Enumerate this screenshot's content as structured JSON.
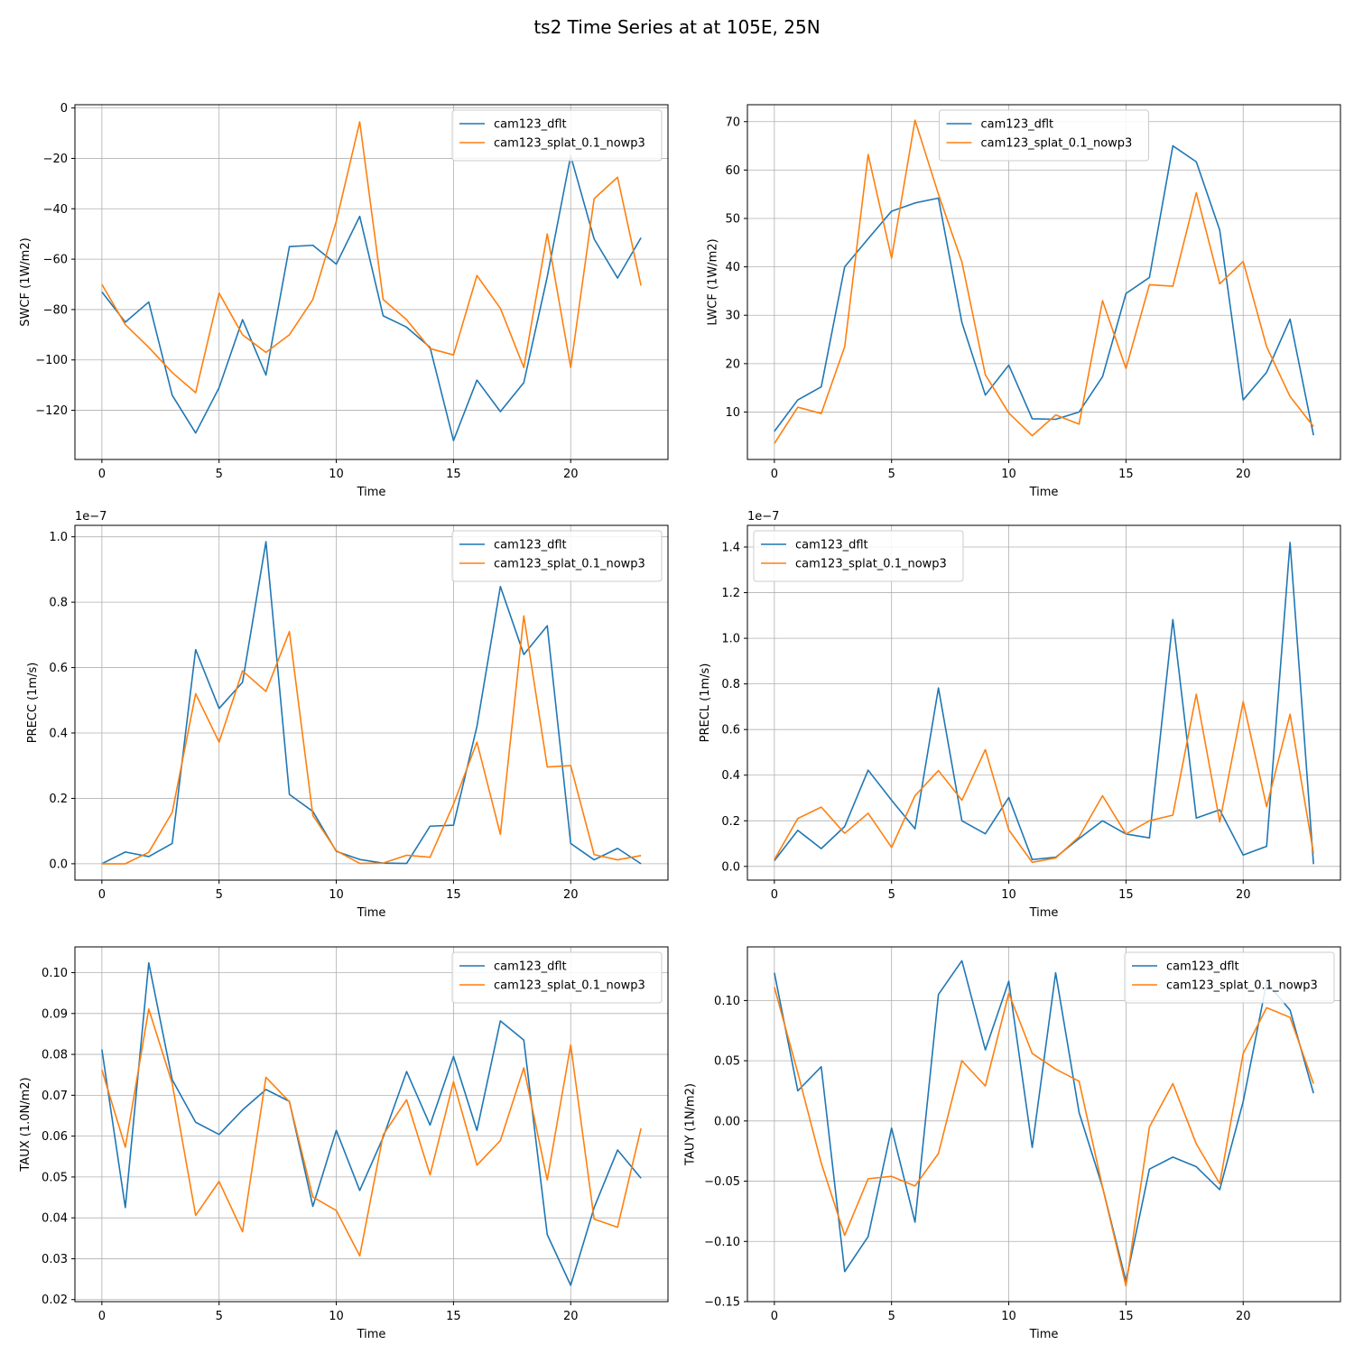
{
  "figure": {
    "title": "ts2 Time Series at at 105E, 25N",
    "colors": {
      "cam123_dflt": "#1f77b4",
      "cam123_splat_0.1_nowp3": "#ff7f0e"
    }
  },
  "chart_data": [
    {
      "type": "line",
      "title": "",
      "xlabel": "Time",
      "ylabel": "SWCF (1W/m2)",
      "x": [
        0,
        1,
        2,
        3,
        4,
        5,
        6,
        7,
        8,
        9,
        10,
        11,
        12,
        13,
        14,
        15,
        16,
        17,
        18,
        19,
        20,
        21,
        22,
        23
      ],
      "xlim": [
        -1.15,
        24.15
      ],
      "ylim": [
        -139.5,
        1.3
      ],
      "xticks": [
        0,
        5,
        10,
        15,
        20
      ],
      "xtick_labels": [
        "0",
        "5",
        "10",
        "15",
        "20"
      ],
      "yticks": [
        -120,
        -100,
        -80,
        -60,
        -40,
        -20,
        0
      ],
      "ytick_labels": [
        "−120",
        "−100",
        "−80",
        "−60",
        "−40",
        "−20",
        "0"
      ],
      "offset_text": "",
      "legend_position": "upper right",
      "series": [
        {
          "name": "cam123_dflt",
          "color": "#1f77b4",
          "values": [
            -73,
            -85,
            -77,
            -114,
            -129,
            -111,
            -84,
            -106,
            -55,
            -54.5,
            -62,
            -43,
            -82.5,
            -87,
            -95,
            -132,
            -108,
            -120.5,
            -109,
            -67,
            -19,
            -52,
            -67.5,
            -51.5
          ]
        },
        {
          "name": "cam123_splat_0.1_nowp3",
          "color": "#ff7f0e",
          "values": [
            -70,
            -86,
            -95,
            -105,
            -113,
            -73.5,
            -90,
            -97,
            -90,
            -76,
            -45,
            -5.5,
            -76,
            -84,
            -95.5,
            -98,
            -66.5,
            -79.5,
            -103,
            -50,
            -103,
            -36,
            -27.5,
            -70.5
          ]
        }
      ]
    },
    {
      "type": "line",
      "title": "",
      "xlabel": "Time",
      "ylabel": "LWCF (1W/m2)",
      "x": [
        0,
        1,
        2,
        3,
        4,
        5,
        6,
        7,
        8,
        9,
        10,
        11,
        12,
        13,
        14,
        15,
        16,
        17,
        18,
        19,
        20,
        21,
        22,
        23
      ],
      "xlim": [
        -1.15,
        24.15
      ],
      "ylim": [
        0.2,
        73.5
      ],
      "xticks": [
        0,
        5,
        10,
        15,
        20
      ],
      "xtick_labels": [
        "0",
        "5",
        "10",
        "15",
        "20"
      ],
      "yticks": [
        10,
        20,
        30,
        40,
        50,
        60,
        70
      ],
      "ytick_labels": [
        "10",
        "20",
        "30",
        "40",
        "50",
        "60",
        "70"
      ],
      "offset_text": "",
      "legend_position": "upper center",
      "series": [
        {
          "name": "cam123_dflt",
          "color": "#1f77b4",
          "values": [
            6,
            12.5,
            15.2,
            40,
            45.8,
            51.5,
            53.2,
            54.2,
            28.5,
            13.5,
            19.7,
            8.6,
            8.5,
            10,
            17.3,
            34.5,
            37.8,
            65,
            61.7,
            47.6,
            12.5,
            18.2,
            29.2,
            5.2
          ]
        },
        {
          "name": "cam123_splat_0.1_nowp3",
          "color": "#ff7f0e",
          "values": [
            3.5,
            11,
            9.7,
            23.5,
            63.2,
            41.8,
            70.3,
            55,
            41,
            17.7,
            9.8,
            5.1,
            9.4,
            7.5,
            33,
            19,
            36.3,
            36,
            55.3,
            36.5,
            41.1,
            23.5,
            13.2,
            7
          ]
        }
      ]
    },
    {
      "type": "line",
      "title": "",
      "xlabel": "Time",
      "ylabel": "PRECC (1m/s)",
      "x": [
        0,
        1,
        2,
        3,
        4,
        5,
        6,
        7,
        8,
        9,
        10,
        11,
        12,
        13,
        14,
        15,
        16,
        17,
        18,
        19,
        20,
        21,
        22,
        23
      ],
      "xlim": [
        -1.15,
        24.15
      ],
      "ylim": [
        -0.05,
        1.035
      ],
      "xticks": [
        0,
        5,
        10,
        15,
        20
      ],
      "xtick_labels": [
        "0",
        "5",
        "10",
        "15",
        "20"
      ],
      "yticks": [
        0,
        0.2,
        0.4,
        0.6,
        0.8,
        1.0
      ],
      "ytick_labels": [
        "0.0",
        "0.2",
        "0.4",
        "0.6",
        "0.8",
        "1.0"
      ],
      "offset_text": "1e−7",
      "legend_position": "upper right",
      "series": [
        {
          "name": "cam123_dflt",
          "color": "#1f77b4",
          "values": [
            0,
            0.036,
            0.022,
            0.062,
            0.655,
            0.475,
            0.555,
            0.985,
            0.212,
            0.16,
            0.038,
            0.013,
            0.002,
            0.001,
            0.115,
            0.118,
            0.42,
            0.848,
            0.64,
            0.728,
            0.062,
            0.012,
            0.047,
            0
          ]
        },
        {
          "name": "cam123_splat_0.1_nowp3",
          "color": "#ff7f0e",
          "values": [
            0,
            0,
            0.035,
            0.157,
            0.52,
            0.372,
            0.59,
            0.527,
            0.71,
            0.148,
            0.04,
            0.001,
            0.002,
            0.026,
            0.02,
            0.182,
            0.372,
            0.09,
            0.758,
            0.296,
            0.3,
            0.028,
            0.012,
            0.025
          ]
        }
      ]
    },
    {
      "type": "line",
      "title": "",
      "xlabel": "Time",
      "ylabel": "PRECL (1m/s)",
      "x": [
        0,
        1,
        2,
        3,
        4,
        5,
        6,
        7,
        8,
        9,
        10,
        11,
        12,
        13,
        14,
        15,
        16,
        17,
        18,
        19,
        20,
        21,
        22,
        23
      ],
      "xlim": [
        -1.15,
        24.15
      ],
      "ylim": [
        -0.06,
        1.495
      ],
      "xticks": [
        0,
        5,
        10,
        15,
        20
      ],
      "xtick_labels": [
        "0",
        "5",
        "10",
        "15",
        "20"
      ],
      "yticks": [
        0,
        0.2,
        0.4,
        0.6,
        0.8,
        1.0,
        1.2,
        1.4
      ],
      "ytick_labels": [
        "0.0",
        "0.2",
        "0.4",
        "0.6",
        "0.8",
        "1.0",
        "1.2",
        "1.4"
      ],
      "offset_text": "1e−7",
      "legend_position": "upper left",
      "series": [
        {
          "name": "cam123_dflt",
          "color": "#1f77b4",
          "values": [
            0.025,
            0.158,
            0.078,
            0.175,
            0.422,
            0.29,
            0.165,
            0.782,
            0.2,
            0.143,
            0.302,
            0.03,
            0.04,
            0.122,
            0.2,
            0.142,
            0.125,
            1.082,
            0.212,
            0.248,
            0.05,
            0.088,
            1.42,
            0.01
          ]
        },
        {
          "name": "cam123_splat_0.1_nowp3",
          "color": "#ff7f0e",
          "values": [
            0.03,
            0.21,
            0.26,
            0.145,
            0.233,
            0.083,
            0.31,
            0.42,
            0.29,
            0.512,
            0.16,
            0.018,
            0.037,
            0.13,
            0.31,
            0.142,
            0.2,
            0.225,
            0.755,
            0.195,
            0.722,
            0.262,
            0.667,
            0.057
          ]
        }
      ]
    },
    {
      "type": "line",
      "title": "",
      "xlabel": "Time",
      "ylabel": "TAUX (1.0N/m2)",
      "x": [
        0,
        1,
        2,
        3,
        4,
        5,
        6,
        7,
        8,
        9,
        10,
        11,
        12,
        13,
        14,
        15,
        16,
        17,
        18,
        19,
        20,
        21,
        22,
        23
      ],
      "xlim": [
        -1.15,
        24.15
      ],
      "ylim": [
        0.0195,
        0.1063
      ],
      "xticks": [
        0,
        5,
        10,
        15,
        20
      ],
      "xtick_labels": [
        "0",
        "5",
        "10",
        "15",
        "20"
      ],
      "yticks": [
        0.02,
        0.03,
        0.04,
        0.05,
        0.06,
        0.07,
        0.08,
        0.09,
        0.1
      ],
      "ytick_labels": [
        "0.02",
        "0.03",
        "0.04",
        "0.05",
        "0.06",
        "0.07",
        "0.08",
        "0.09",
        "0.10"
      ],
      "offset_text": "",
      "legend_position": "upper right",
      "series": [
        {
          "name": "cam123_dflt",
          "color": "#1f77b4",
          "values": [
            0.0812,
            0.0425,
            0.1024,
            0.0738,
            0.0634,
            0.0604,
            0.0664,
            0.0714,
            0.0685,
            0.0428,
            0.0614,
            0.0467,
            0.0597,
            0.0758,
            0.0627,
            0.0795,
            0.0614,
            0.0882,
            0.0835,
            0.0359,
            0.0235,
            0.0425,
            0.0566,
            0.0497
          ]
        },
        {
          "name": "cam123_splat_0.1_nowp3",
          "color": "#ff7f0e",
          "values": [
            0.0762,
            0.0573,
            0.0911,
            0.0729,
            0.0406,
            0.0489,
            0.0366,
            0.0744,
            0.0684,
            0.0451,
            0.0418,
            0.0307,
            0.0603,
            0.0689,
            0.0505,
            0.0733,
            0.0529,
            0.0589,
            0.0767,
            0.0493,
            0.0823,
            0.0397,
            0.0377,
            0.0619
          ]
        }
      ]
    },
    {
      "type": "line",
      "title": "",
      "xlabel": "Time",
      "ylabel": "TAUY (1N/m2)",
      "x": [
        0,
        1,
        2,
        3,
        4,
        5,
        6,
        7,
        8,
        9,
        10,
        11,
        12,
        13,
        14,
        15,
        16,
        17,
        18,
        19,
        20,
        21,
        22,
        23
      ],
      "xlim": [
        -1.15,
        24.15
      ],
      "ylim": [
        -0.15,
        0.1445
      ],
      "xticks": [
        0,
        5,
        10,
        15,
        20
      ],
      "xtick_labels": [
        "0",
        "5",
        "10",
        "15",
        "20"
      ],
      "yticks": [
        -0.15,
        -0.1,
        -0.05,
        0.0,
        0.05,
        0.1
      ],
      "ytick_labels": [
        "−0.15",
        "−0.10",
        "−0.05",
        "0.00",
        "0.05",
        "0.10"
      ],
      "offset_text": "",
      "legend_position": "upper right",
      "series": [
        {
          "name": "cam123_dflt",
          "color": "#1f77b4",
          "values": [
            0.123,
            0.025,
            0.045,
            -0.125,
            -0.096,
            -0.006,
            -0.084,
            0.105,
            0.133,
            0.059,
            0.116,
            -0.022,
            0.123,
            0.007,
            -0.055,
            -0.133,
            -0.04,
            -0.03,
            -0.038,
            -0.057,
            0.016,
            0.115,
            0.092,
            0.023
          ]
        },
        {
          "name": "cam123_splat_0.1_nowp3",
          "color": "#ff7f0e",
          "values": [
            0.111,
            0.04,
            -0.035,
            -0.095,
            -0.048,
            -0.046,
            -0.054,
            -0.027,
            0.05,
            0.029,
            0.106,
            0.056,
            0.043,
            0.033,
            -0.055,
            -0.137,
            -0.005,
            0.031,
            -0.019,
            -0.052,
            0.056,
            0.094,
            0.086,
            0.031
          ]
        }
      ]
    }
  ]
}
